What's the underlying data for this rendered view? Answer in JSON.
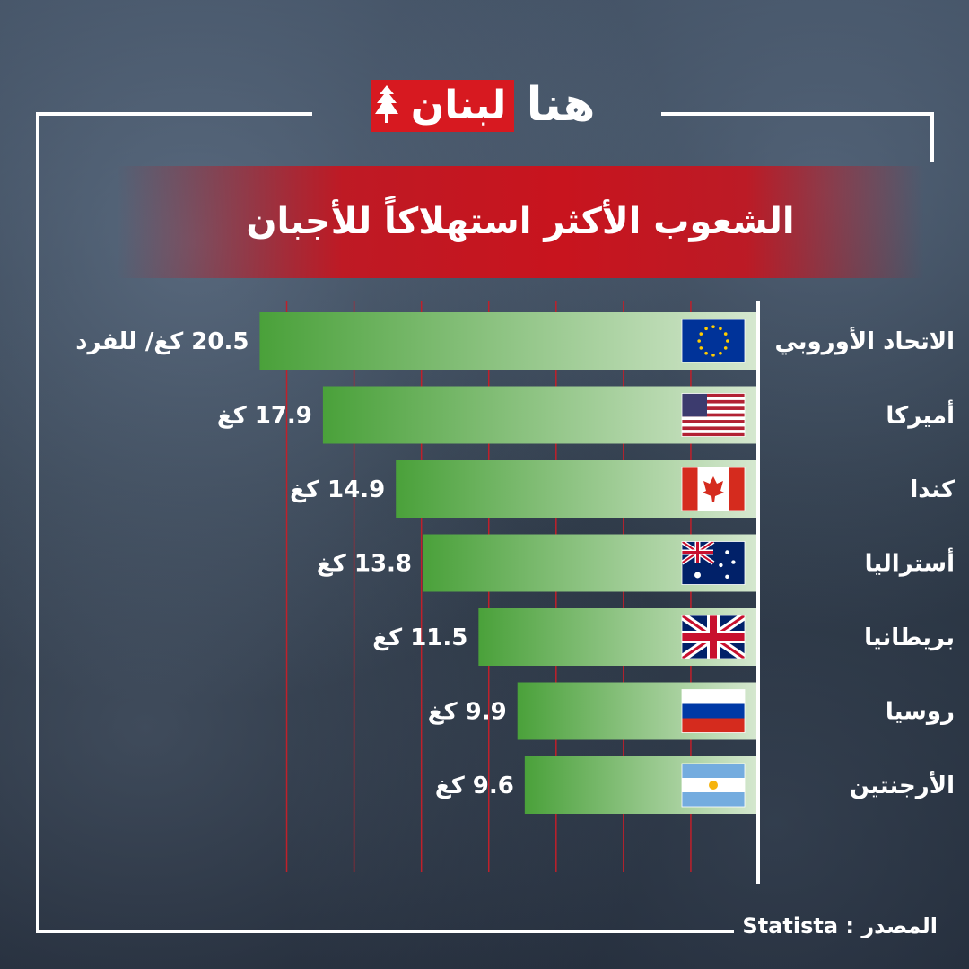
{
  "brand": {
    "logo_red_text": "لبنان",
    "logo_white_text": "هنا"
  },
  "title": "الشعوب الأكثر استهلاكاً للأجبان",
  "chart_data": {
    "type": "bar",
    "orientation": "horizontal",
    "categories": [
      "الاتحاد الأوروبي",
      "أميركا",
      "كندا",
      "أستراليا",
      "بريطانيا",
      "روسيا",
      "الأرجنتين"
    ],
    "values": [
      20.5,
      17.9,
      14.9,
      13.8,
      11.5,
      9.9,
      9.6
    ],
    "value_labels": [
      "20.5 كغ/ للفرد",
      "17.9 كغ",
      "14.9 كغ",
      "13.8 كغ",
      "11.5 كغ",
      "9.9 كغ",
      "9.6 كغ"
    ],
    "flags": [
      "eu-flag-icon",
      "usa-flag-icon",
      "canada-flag-icon",
      "australia-flag-icon",
      "uk-flag-icon",
      "russia-flag-icon",
      "argentina-flag-icon"
    ],
    "xlim": [
      0,
      21
    ],
    "grid": true,
    "colors": {
      "bar_start": "#4aa13a",
      "bar_end": "#d6e8d0",
      "grid": "#c0202a"
    }
  },
  "footer": {
    "source_label": "المصدر :",
    "source": "Statista"
  }
}
